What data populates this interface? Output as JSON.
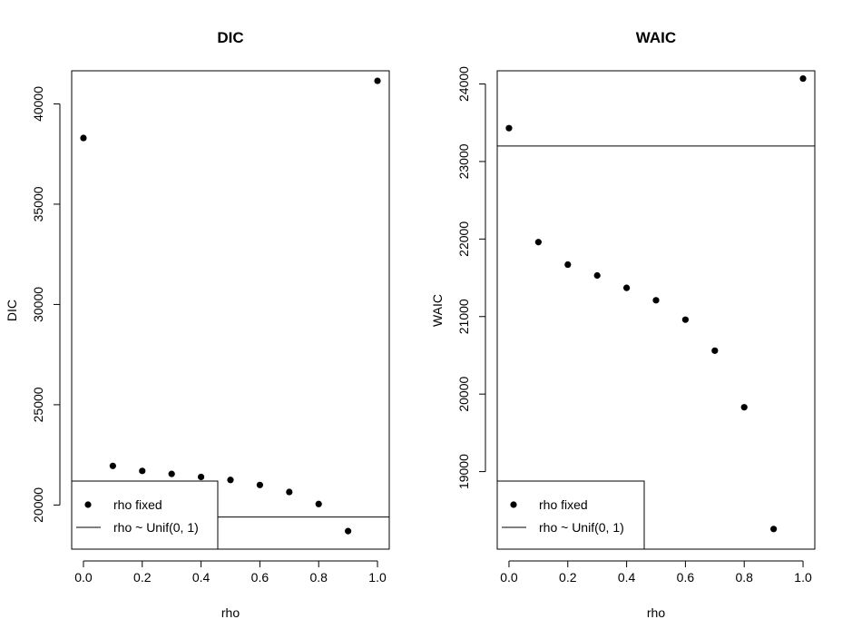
{
  "chart_data": [
    {
      "type": "scatter",
      "title": "DIC",
      "xlabel": "rho",
      "ylabel": "DIC",
      "xlim": [
        -0.04,
        1.04
      ],
      "ylim": [
        17800,
        41650
      ],
      "xticks": [
        "0.0",
        "0.2",
        "0.4",
        "0.6",
        "0.8",
        "1.0"
      ],
      "xtick_values": [
        0,
        0.2,
        0.4,
        0.6,
        0.8,
        1.0
      ],
      "yticks": [
        "20000",
        "25000",
        "30000",
        "35000",
        "40000"
      ],
      "ytick_values": [
        20000,
        25000,
        30000,
        35000,
        40000
      ],
      "series": [
        {
          "name": "rho fixed",
          "x": [
            0.0,
            0.1,
            0.2,
            0.3,
            0.4,
            0.5,
            0.6,
            0.7,
            0.8,
            0.9,
            1.0
          ],
          "y": [
            38300,
            21950,
            21700,
            21550,
            21400,
            21250,
            21000,
            20650,
            20050,
            18700,
            41150
          ]
        },
        {
          "name": "rho ~ Unif(0, 1)",
          "hline": 19400
        }
      ],
      "legend": {
        "position": "bottom-left",
        "entries": [
          "rho fixed",
          "rho ~ Unif(0, 1)"
        ]
      }
    },
    {
      "type": "scatter",
      "title": "WAIC",
      "xlabel": "rho",
      "ylabel": "WAIC",
      "xlim": [
        -0.04,
        1.04
      ],
      "ylim": [
        18000,
        24170
      ],
      "xticks": [
        "0.0",
        "0.2",
        "0.4",
        "0.6",
        "0.8",
        "1.0"
      ],
      "xtick_values": [
        0,
        0.2,
        0.4,
        0.6,
        0.8,
        1.0
      ],
      "yticks": [
        "19000",
        "20000",
        "21000",
        "22000",
        "23000",
        "24000"
      ],
      "ytick_values": [
        19000,
        20000,
        21000,
        22000,
        23000,
        24000
      ],
      "series": [
        {
          "name": "rho fixed",
          "x": [
            0.0,
            0.1,
            0.2,
            0.3,
            0.4,
            0.5,
            0.6,
            0.7,
            0.8,
            0.9,
            1.0
          ],
          "y": [
            23430,
            21960,
            21670,
            21530,
            21370,
            21210,
            20960,
            20560,
            19830,
            18260,
            24070
          ]
        },
        {
          "name": "rho ~ Unif(0, 1)",
          "hline": 23200
        }
      ],
      "legend": {
        "position": "bottom-left",
        "entries": [
          "rho fixed",
          "rho ~ Unif(0, 1)"
        ]
      }
    }
  ]
}
